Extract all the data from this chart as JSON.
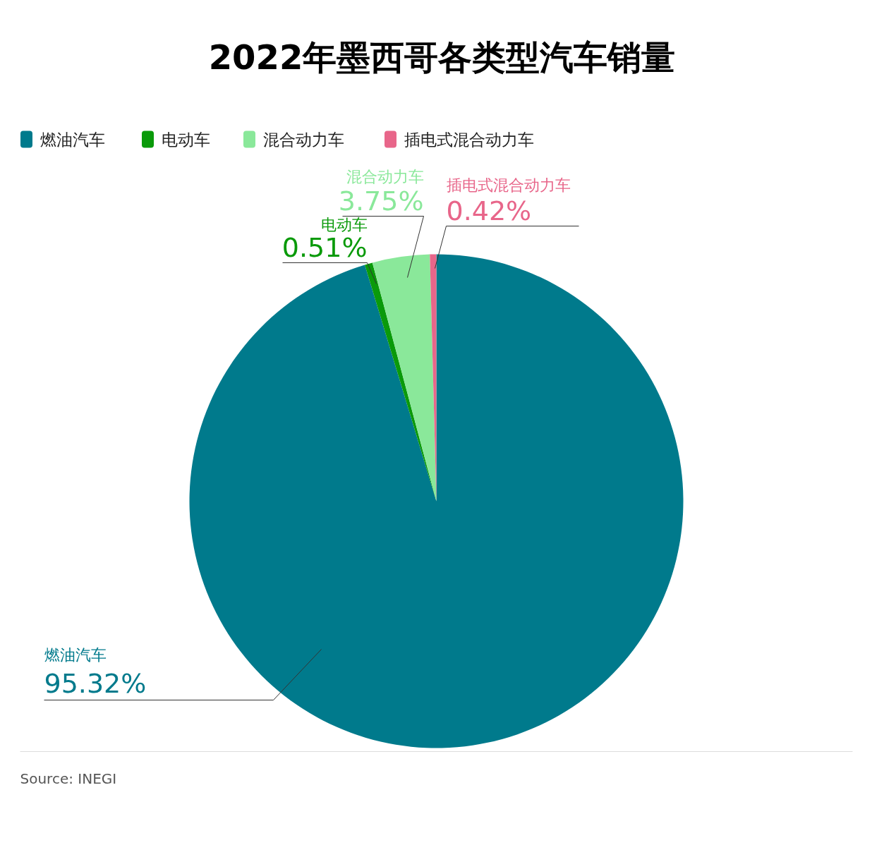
{
  "chart_data": {
    "type": "pie",
    "title": "2022年墨西哥各类型汽车销量",
    "categories": [
      "燃油汽车",
      "电动车",
      "混合动力车",
      "插电式混合动力车"
    ],
    "values": [
      95.32,
      0.51,
      3.75,
      0.42
    ],
    "colors": [
      "#007a8c",
      "#0a9a0a",
      "#8ae89a",
      "#e8668a"
    ],
    "value_labels": [
      "95.32%",
      "0.51%",
      "3.75%",
      "0.42%"
    ],
    "legend": "top left",
    "annotations": [
      "Source: INEGI"
    ]
  }
}
